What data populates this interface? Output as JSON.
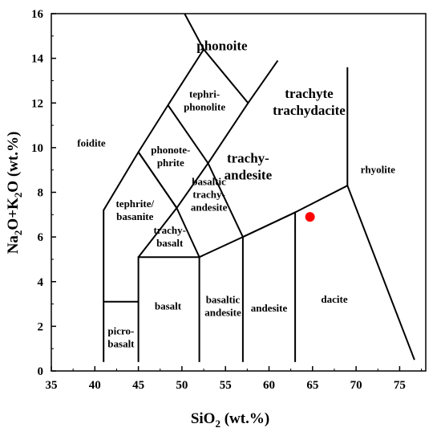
{
  "chart_data": {
    "type": "scatter",
    "xlabel": {
      "main": "SiO",
      "sub": "2",
      "tail": " (wt.%)"
    },
    "ylabel": {
      "a": "Na",
      "a_sub": "2",
      "b": "O+K",
      "b_sub": "2",
      "c": "O (wt.%)"
    },
    "xlim": [
      35,
      78
    ],
    "ylim": [
      0,
      16
    ],
    "x_ticks": [
      35,
      40,
      45,
      50,
      55,
      60,
      65,
      70,
      75
    ],
    "y_ticks": [
      0,
      2,
      4,
      6,
      8,
      10,
      12,
      14,
      16
    ],
    "grid": false,
    "legend": "none",
    "fields": [
      {
        "id": "phonolite",
        "lines": [
          "phonoite"
        ],
        "x": 54.6,
        "y": 14.5,
        "size": "large"
      },
      {
        "id": "trachyte",
        "lines": [
          "trachyte",
          "trachydacite"
        ],
        "x": 64.6,
        "y": 12.0,
        "size": "large"
      },
      {
        "id": "tephriphonolite",
        "lines": [
          "tephri-",
          "phonolite"
        ],
        "x": 52.6,
        "y": 12.1,
        "size": "normal"
      },
      {
        "id": "foidite",
        "lines": [
          "foidite"
        ],
        "x": 39.6,
        "y": 10.2,
        "size": "normal"
      },
      {
        "id": "phonotephrite",
        "lines": [
          "phonote-",
          "phrite"
        ],
        "x": 48.7,
        "y": 9.6,
        "size": "normal"
      },
      {
        "id": "trachyandesite",
        "lines": [
          "trachy-",
          "andesite"
        ],
        "x": 57.6,
        "y": 9.1,
        "size": "large"
      },
      {
        "id": "rhyolite",
        "lines": [
          "rhyolite"
        ],
        "x": 72.5,
        "y": 9.0,
        "size": "normal"
      },
      {
        "id": "basaltic-trachyandesite",
        "lines": [
          "basaltic",
          "trachy-",
          "andesite"
        ],
        "x": 53.1,
        "y": 7.9,
        "size": "normal"
      },
      {
        "id": "tephrite-basanite",
        "lines": [
          "tephrite/",
          "basanite"
        ],
        "x": 44.6,
        "y": 7.2,
        "size": "normal"
      },
      {
        "id": "trachybasalt",
        "lines": [
          "trachy-",
          "basalt"
        ],
        "x": 48.6,
        "y": 6.0,
        "size": "normal"
      },
      {
        "id": "basalt",
        "lines": [
          "basalt"
        ],
        "x": 48.4,
        "y": 2.9,
        "size": "normal"
      },
      {
        "id": "basaltic-andesite",
        "lines": [
          "basaltic",
          "andesite"
        ],
        "x": 54.7,
        "y": 2.9,
        "size": "normal"
      },
      {
        "id": "andesite",
        "lines": [
          "andesite"
        ],
        "x": 60.0,
        "y": 2.8,
        "size": "normal"
      },
      {
        "id": "dacite",
        "lines": [
          "dacite"
        ],
        "x": 67.5,
        "y": 3.2,
        "size": "normal"
      },
      {
        "id": "picrobasalt",
        "lines": [
          "picro-",
          "basalt"
        ],
        "x": 43.0,
        "y": 1.5,
        "size": "normal"
      }
    ],
    "boundaries": [
      [
        [
          41,
          0.4
        ],
        [
          41,
          7.2
        ],
        [
          45,
          9.8
        ],
        [
          48.4,
          11.9
        ],
        [
          52.5,
          14.4
        ],
        [
          57.6,
          12.0
        ],
        [
          61.0,
          13.9
        ]
      ],
      [
        [
          45,
          0.4
        ],
        [
          45,
          5.1
        ],
        [
          52,
          5.1
        ],
        [
          57.0,
          6.0
        ],
        [
          63.0,
          7.1
        ],
        [
          69.0,
          8.3
        ],
        [
          76.7,
          0.5
        ]
      ],
      [
        [
          41,
          3.1
        ],
        [
          45,
          3.1
        ]
      ],
      [
        [
          52,
          0.4
        ],
        [
          52,
          5.1
        ],
        [
          49.4,
          7.3
        ],
        [
          53.0,
          9.3
        ],
        [
          57.6,
          12.0
        ]
      ],
      [
        [
          57,
          0.4
        ],
        [
          57,
          6.0
        ],
        [
          63,
          7.1
        ],
        [
          63,
          0.4
        ]
      ],
      [
        [
          45,
          9.8
        ],
        [
          49.4,
          7.3
        ],
        [
          45,
          5.1
        ]
      ],
      [
        [
          48.4,
          11.9
        ],
        [
          53.0,
          9.3
        ]
      ],
      [
        [
          53.0,
          9.3
        ],
        [
          57.0,
          6.0
        ]
      ],
      [
        [
          49.4,
          7.3
        ],
        [
          45,
          9.8
        ]
      ],
      [
        [
          50.3,
          16.0
        ],
        [
          52.5,
          14.4
        ]
      ],
      [
        [
          69.0,
          8.3
        ],
        [
          69.0,
          13.6
        ]
      ]
    ],
    "points": [
      {
        "x": 64.7,
        "y": 6.9,
        "color": "#ff0000"
      }
    ]
  }
}
